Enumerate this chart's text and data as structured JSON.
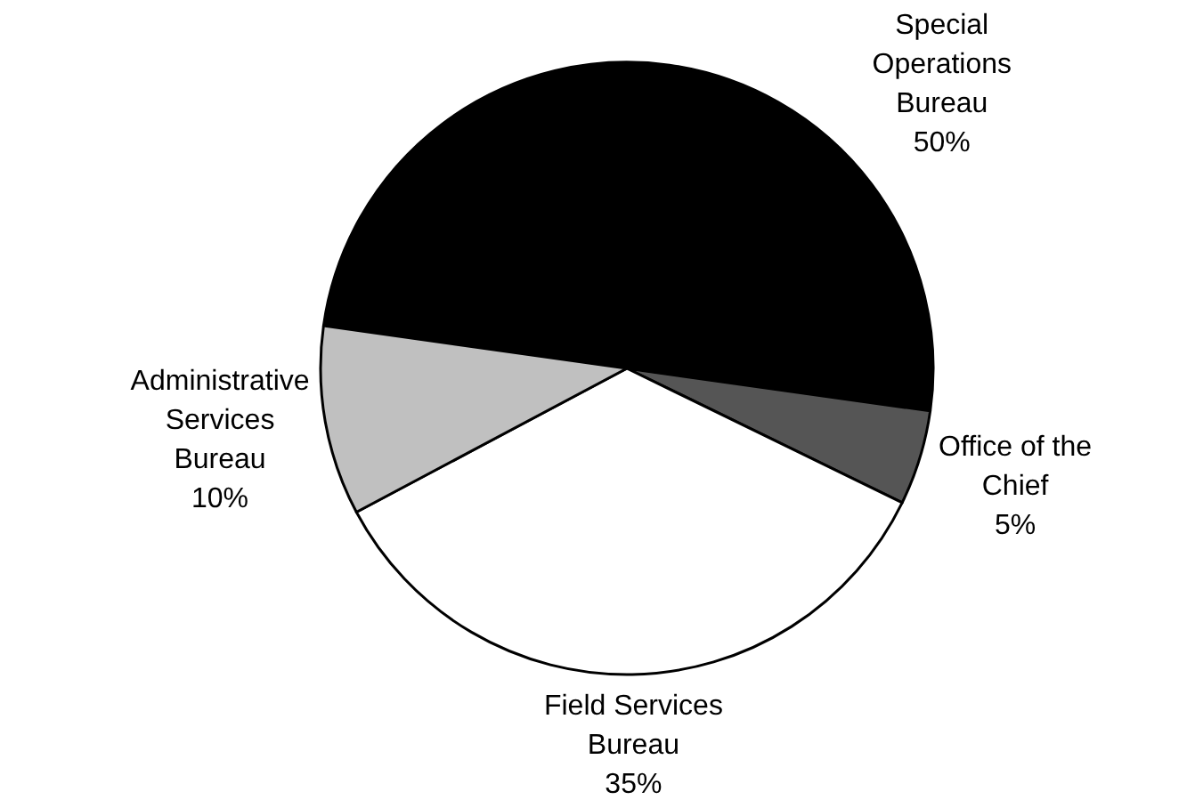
{
  "chart_data": {
    "type": "pie",
    "categories": [
      "Special Operations Bureau",
      "Office of the Chief",
      "Field Services Bureau",
      "Administrative Services Bureau"
    ],
    "values": [
      50,
      5,
      35,
      10
    ],
    "value_labels": [
      "50%",
      "5%",
      "35%",
      "10%"
    ],
    "colors": [
      "#000000",
      "#555555",
      "#ffffff",
      "#c0c0c0"
    ],
    "legend": false
  }
}
